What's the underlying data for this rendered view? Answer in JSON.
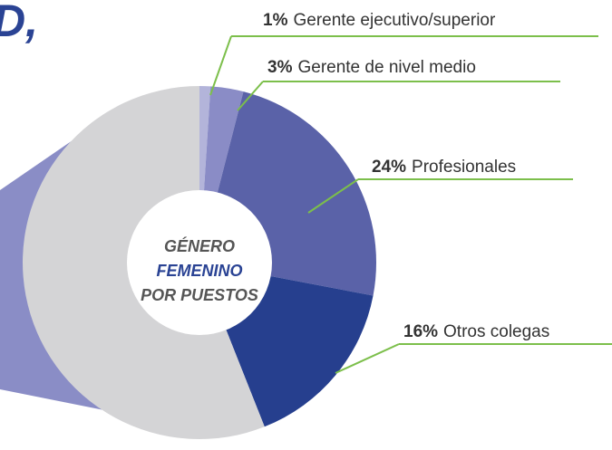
{
  "chart_data": {
    "type": "donut",
    "title": "D,",
    "center_text": [
      "GÉNERO",
      "FEMENINO",
      "POR PUESTOS"
    ],
    "categories": [
      "Gerente ejecutivo/superior",
      "Gerente de nivel medio",
      "Profesionales",
      "Otros colegas",
      null
    ],
    "values": [
      1,
      3,
      24,
      16,
      56
    ],
    "value_labels": [
      "1%",
      "3%",
      "24%",
      "16%",
      null
    ],
    "colors": [
      "#b3b4da",
      "#8a8cc6",
      "#5a62a8",
      "#263f8e",
      "#d4d4d6"
    ]
  }
}
